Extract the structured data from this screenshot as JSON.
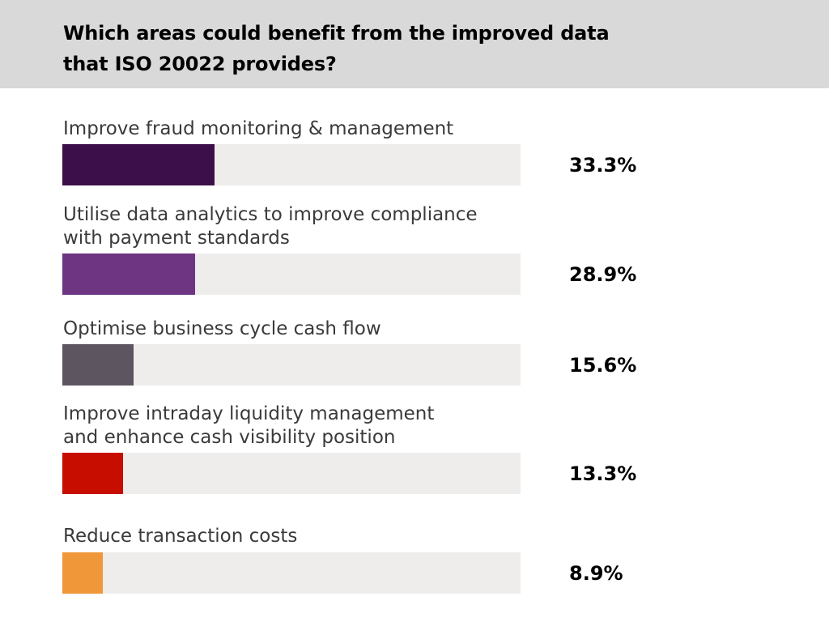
{
  "title": "Which areas could benefit from the improved data that ISO 20022 provides?",
  "chart_data": {
    "type": "bar",
    "orientation": "horizontal",
    "categories": [
      "Improve fraud monitoring & management",
      "Utilise data analytics to improve compliance\nwith payment standards",
      "Optimise business cycle cash flow",
      "Improve intraday liquidity management\nand enhance cash visibility position",
      "Reduce transaction costs"
    ],
    "values": [
      33.3,
      28.9,
      15.6,
      13.3,
      8.9
    ],
    "value_labels": [
      "33.3%",
      "28.9%",
      "15.6%",
      "13.3%",
      "8.9%"
    ],
    "xlim": [
      0,
      100
    ],
    "colors": [
      "#3d0f4a",
      "#6e3583",
      "#5d5560",
      "#c70c00",
      "#f0973a"
    ],
    "track_color": "#efedec",
    "title_band_color": "#d9d9d9"
  }
}
